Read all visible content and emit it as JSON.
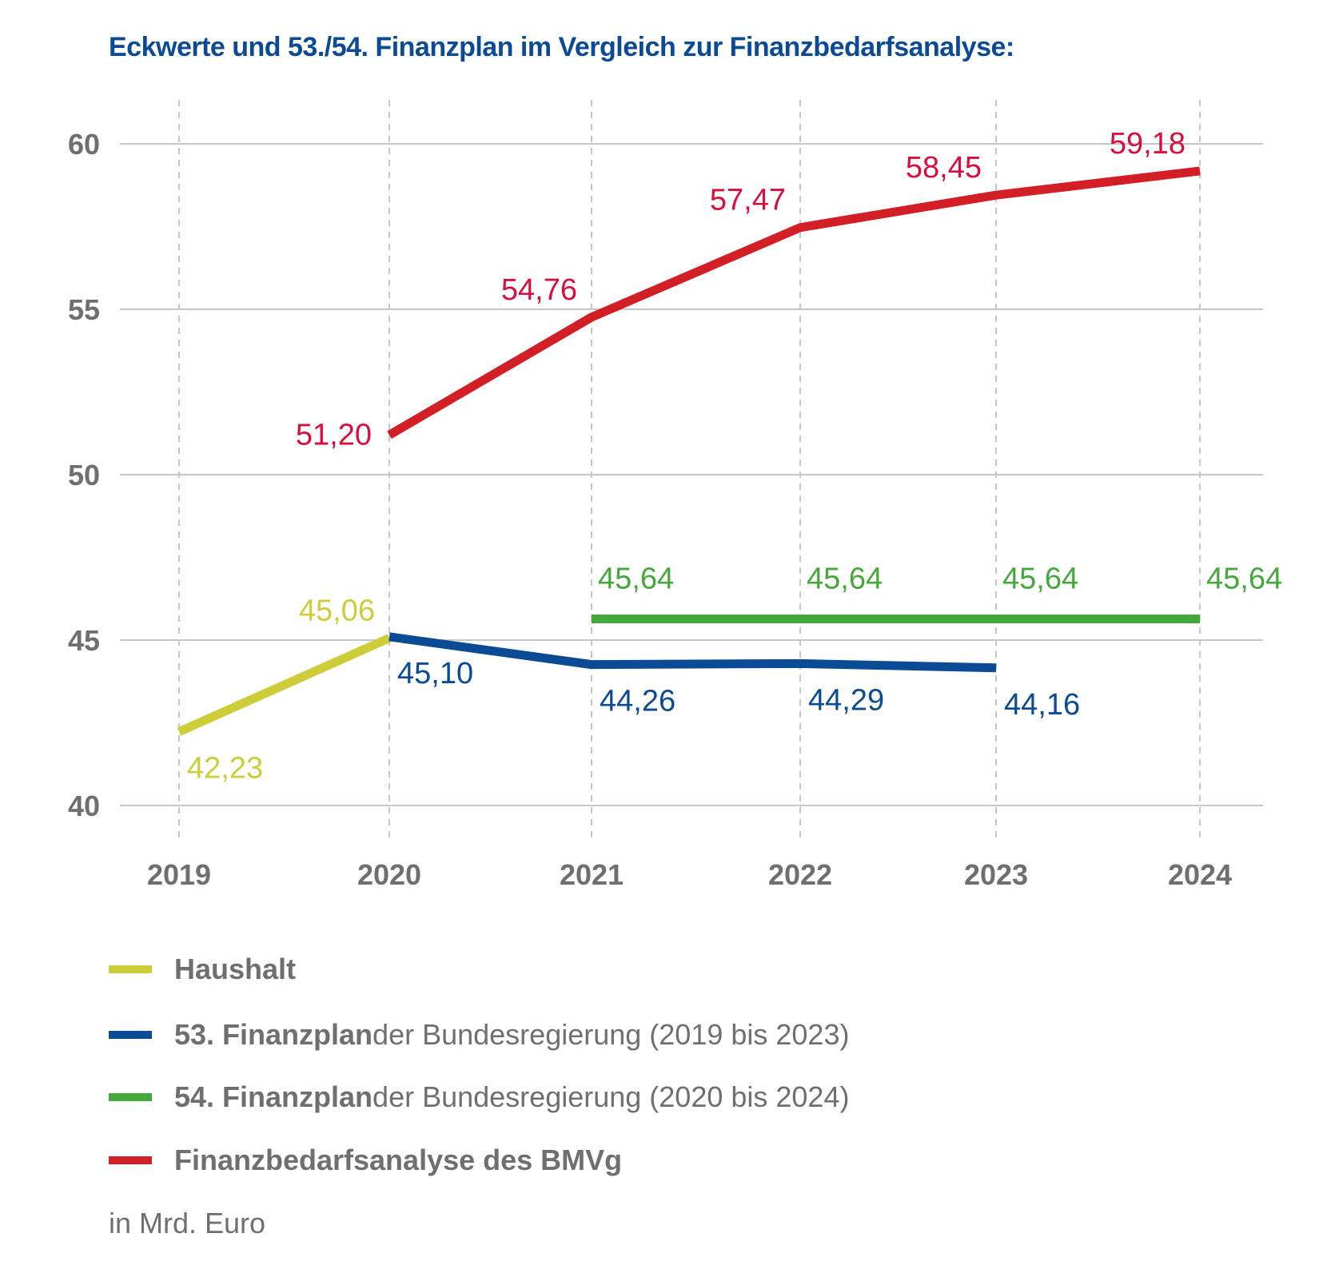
{
  "title": "Eckwerte und 53./54. Finanzplan im Vergleich zur Finanzbedarfsanalyse:",
  "title_color": "#0b4a94",
  "unit_note": "in Mrd. Euro",
  "axis_color": "#6f6f6f",
  "grid_color": "#c6c6c6",
  "legend": [
    {
      "strong": "Haushalt",
      "rest": "",
      "color": "#cdcd3a"
    },
    {
      "strong": "53. Finanzplan",
      "rest": " der Bundesregierung (2019 bis 2023)",
      "color": "#0b4a94"
    },
    {
      "strong": "54. Finanzplan",
      "rest": " der Bundesregierung (2020 bis 2024)",
      "color": "#44a83a"
    },
    {
      "strong": "Finanzbedarfsanalyse des BMVg",
      "rest": "",
      "color": "#d21f26"
    }
  ],
  "chart_data": {
    "type": "line",
    "x": [
      "2019",
      "2020",
      "2021",
      "2022",
      "2023",
      "2024"
    ],
    "yticks": [
      "40",
      "45",
      "50",
      "55",
      "60"
    ],
    "ylim": [
      40,
      60
    ],
    "grid": true,
    "legend_position": "bottom",
    "series": [
      {
        "name": "Haushalt",
        "color": "#cdcd3a",
        "points": [
          {
            "x": "2019",
            "y": 42.23,
            "label": "42,23",
            "pos": "below"
          },
          {
            "x": "2020",
            "y": 45.06,
            "label": "45,06",
            "pos": "above-left"
          }
        ]
      },
      {
        "name": "53. Finanzplan der Bundesregierung (2019 bis 2023)",
        "color": "#0b4a94",
        "points": [
          {
            "x": "2020",
            "y": 45.1,
            "label": "45,10",
            "pos": "below"
          },
          {
            "x": "2021",
            "y": 44.26,
            "label": "44,26",
            "pos": "below"
          },
          {
            "x": "2022",
            "y": 44.29,
            "label": "44,29",
            "pos": "below"
          },
          {
            "x": "2023",
            "y": 44.16,
            "label": "44,16",
            "pos": "below"
          }
        ]
      },
      {
        "name": "54. Finanzplan der Bundesregierung (2020 bis 2024)",
        "color": "#44a83a",
        "points": [
          {
            "x": "2021",
            "y": 45.64,
            "label": "45,64",
            "pos": "above"
          },
          {
            "x": "2022",
            "y": 45.64,
            "label": "45,64",
            "pos": "above"
          },
          {
            "x": "2023",
            "y": 45.64,
            "label": "45,64",
            "pos": "above"
          },
          {
            "x": "2024",
            "y": 45.64,
            "label": "45,64",
            "pos": "above"
          }
        ]
      },
      {
        "name": "Finanzbedarfsanalyse des BMVg",
        "color": "#d21f26",
        "label_color": "#d80f3c",
        "points": [
          {
            "x": "2020",
            "y": 51.2,
            "label": "51,20",
            "pos": "left"
          },
          {
            "x": "2021",
            "y": 54.76,
            "label": "54,76",
            "pos": "above-left"
          },
          {
            "x": "2022",
            "y": 57.47,
            "label": "57,47",
            "pos": "above-left"
          },
          {
            "x": "2023",
            "y": 58.45,
            "label": "58,45",
            "pos": "above-left"
          },
          {
            "x": "2024",
            "y": 59.18,
            "label": "59,18",
            "pos": "above-left"
          }
        ]
      }
    ]
  }
}
